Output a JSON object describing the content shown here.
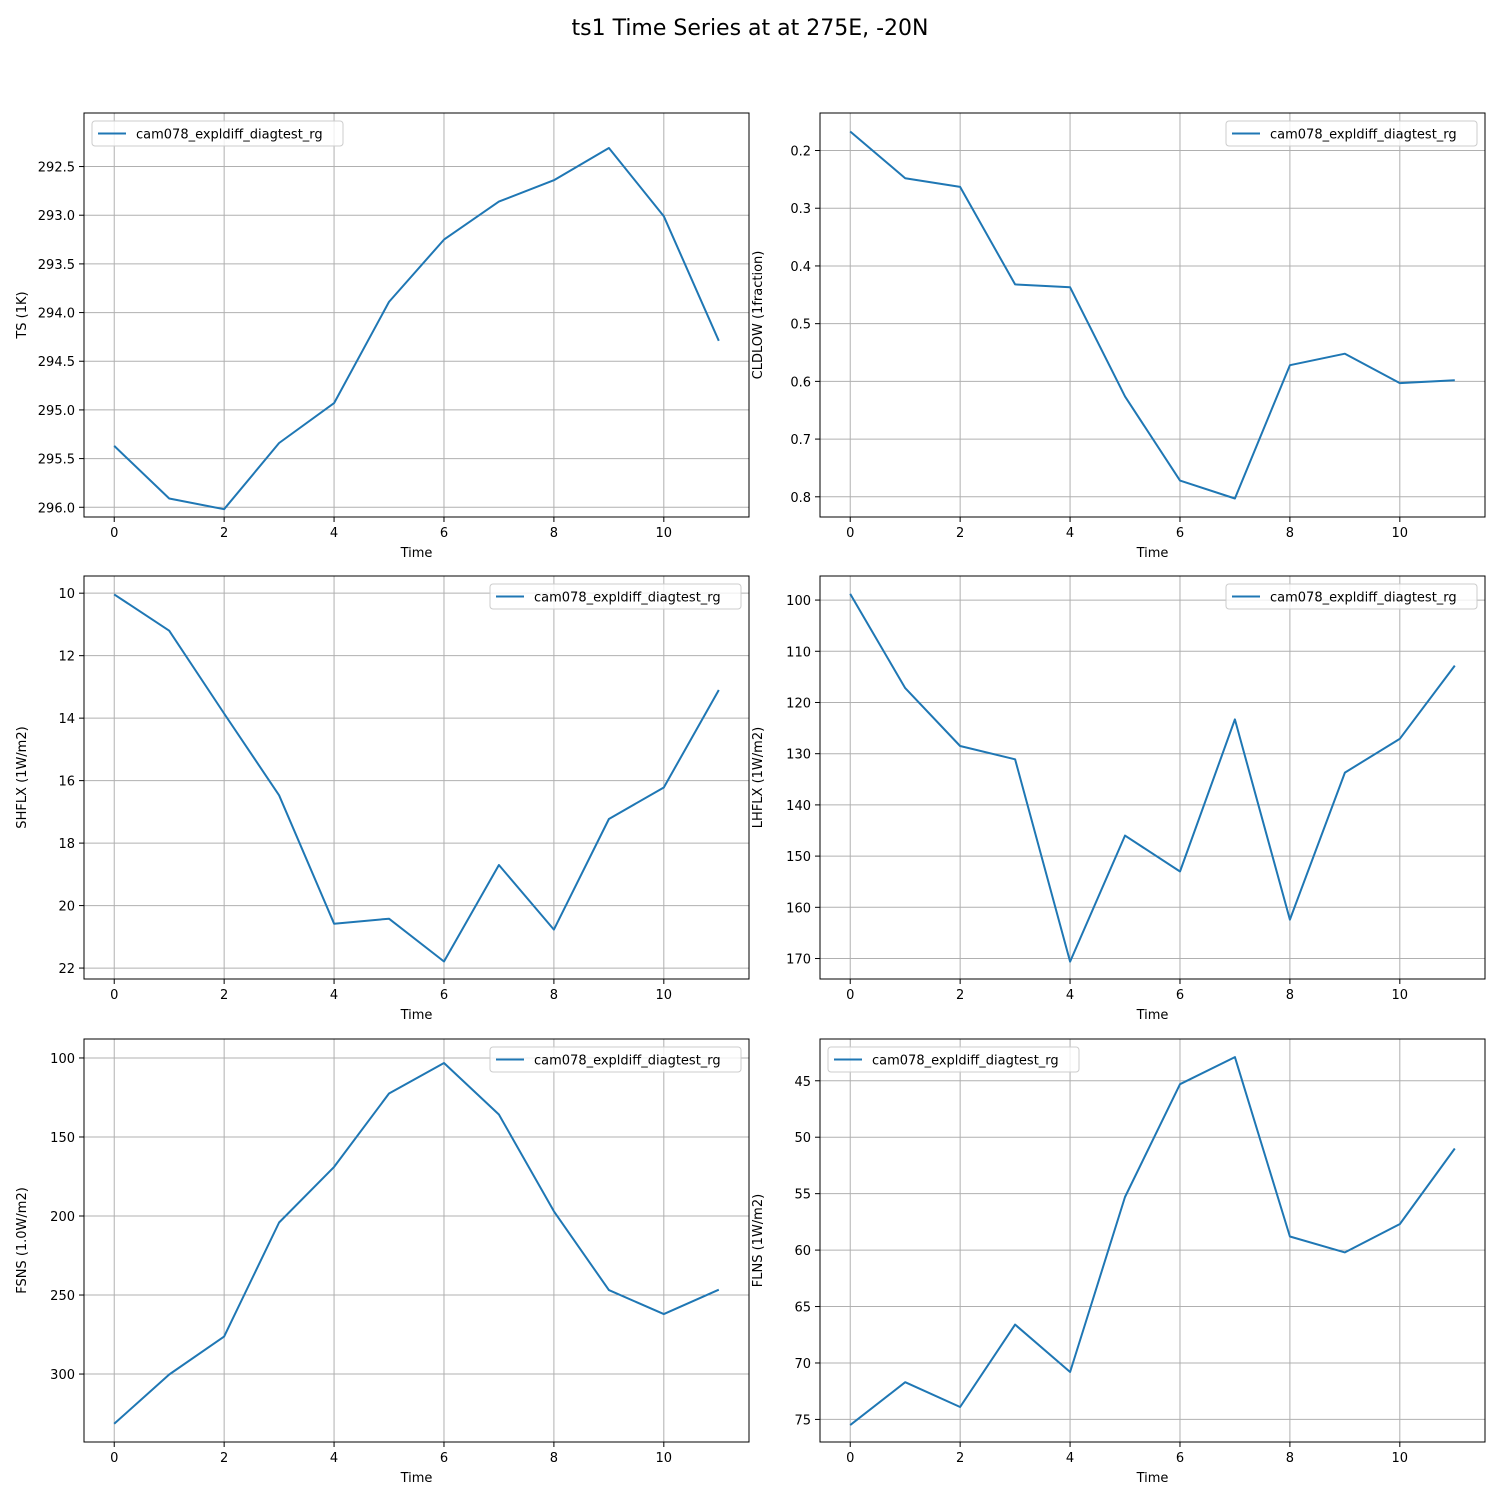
{
  "figure": {
    "title": "ts1 Time Series at at 275E, -20N"
  },
  "colors": {
    "line": "#1f77b4",
    "grid": "#b0b0b0",
    "axis": "#000000"
  },
  "chart_data": [
    {
      "type": "line",
      "xlabel": "Time",
      "ylabel": "TS (1K)",
      "y_inverted": true,
      "xlim": [
        -0.55,
        11.55
      ],
      "ylim": [
        296.1,
        291.95
      ],
      "x_ticks": [
        0,
        2,
        4,
        6,
        8,
        10
      ],
      "y_ticks": [
        292.5,
        293.0,
        293.5,
        294.0,
        294.5,
        295.0,
        295.5,
        296.0
      ],
      "y_tick_labels": [
        "292.5",
        "293.0",
        "293.5",
        "294.0",
        "294.5",
        "295.0",
        "295.5",
        "296.0"
      ],
      "grid": true,
      "legend_position": "upper left",
      "series": [
        {
          "name": "cam078_expldiff_diagtest_rg",
          "x": [
            0,
            1,
            2,
            3,
            4,
            5,
            6,
            7,
            8,
            9,
            10,
            11
          ],
          "y": [
            295.37,
            295.91,
            296.02,
            295.34,
            294.93,
            293.89,
            293.25,
            292.86,
            292.64,
            292.31,
            293.01,
            294.29
          ]
        }
      ]
    },
    {
      "type": "line",
      "xlabel": "Time",
      "ylabel": "CLDLOW (1fraction)",
      "y_inverted": true,
      "xlim": [
        -0.55,
        11.55
      ],
      "ylim": [
        0.835,
        0.135
      ],
      "x_ticks": [
        0,
        2,
        4,
        6,
        8,
        10
      ],
      "y_ticks": [
        0.2,
        0.3,
        0.4,
        0.5,
        0.6,
        0.7,
        0.8
      ],
      "y_tick_labels": [
        "0.2",
        "0.3",
        "0.4",
        "0.5",
        "0.6",
        "0.7",
        "0.8"
      ],
      "grid": true,
      "legend_position": "upper right",
      "series": [
        {
          "name": "cam078_expldiff_diagtest_rg",
          "x": [
            0,
            1,
            2,
            3,
            4,
            5,
            6,
            7,
            8,
            9,
            10,
            11
          ],
          "y": [
            0.167,
            0.248,
            0.263,
            0.432,
            0.437,
            0.626,
            0.772,
            0.803,
            0.572,
            0.552,
            0.603,
            0.598
          ]
        }
      ]
    },
    {
      "type": "line",
      "xlabel": "Time",
      "ylabel": "SHFLX (1W/m2)",
      "y_inverted": true,
      "xlim": [
        -0.55,
        11.55
      ],
      "ylim": [
        22.35,
        9.45
      ],
      "x_ticks": [
        0,
        2,
        4,
        6,
        8,
        10
      ],
      "y_ticks": [
        10,
        12,
        14,
        16,
        18,
        20,
        22
      ],
      "y_tick_labels": [
        "10",
        "12",
        "14",
        "16",
        "18",
        "20",
        "22"
      ],
      "grid": true,
      "legend_position": "upper right",
      "series": [
        {
          "name": "cam078_expldiff_diagtest_rg",
          "x": [
            0,
            1,
            2,
            3,
            4,
            5,
            6,
            7,
            8,
            9,
            10,
            11
          ],
          "y": [
            10.04,
            11.2,
            13.85,
            16.47,
            20.58,
            20.42,
            21.79,
            18.7,
            20.77,
            17.23,
            16.22,
            13.1
          ]
        }
      ]
    },
    {
      "type": "line",
      "xlabel": "Time",
      "ylabel": "LHFLX (1W/m2)",
      "y_inverted": true,
      "xlim": [
        -0.55,
        11.55
      ],
      "ylim": [
        174.0,
        95.3
      ],
      "x_ticks": [
        0,
        2,
        4,
        6,
        8,
        10
      ],
      "y_ticks": [
        100,
        110,
        120,
        130,
        140,
        150,
        160,
        170
      ],
      "y_tick_labels": [
        "100",
        "110",
        "120",
        "130",
        "140",
        "150",
        "160",
        "170"
      ],
      "grid": true,
      "legend_position": "upper right",
      "series": [
        {
          "name": "cam078_expldiff_diagtest_rg",
          "x": [
            0,
            1,
            2,
            3,
            4,
            5,
            6,
            7,
            8,
            9,
            10,
            11
          ],
          "y": [
            98.8,
            117.2,
            128.5,
            131.1,
            170.6,
            146.0,
            153.0,
            123.3,
            162.4,
            133.7,
            127.1,
            112.8
          ]
        }
      ]
    },
    {
      "type": "line",
      "xlabel": "Time",
      "ylabel": "FSNS (1.0W/m2)",
      "y_inverted": true,
      "xlim": [
        -0.55,
        11.55
      ],
      "ylim": [
        343.0,
        88.0
      ],
      "x_ticks": [
        0,
        2,
        4,
        6,
        8,
        10
      ],
      "y_ticks": [
        100,
        150,
        200,
        250,
        300
      ],
      "y_tick_labels": [
        "100",
        "150",
        "200",
        "250",
        "300"
      ],
      "grid": true,
      "legend_position": "upper right",
      "series": [
        {
          "name": "cam078_expldiff_diagtest_rg",
          "x": [
            0,
            1,
            2,
            3,
            4,
            5,
            6,
            7,
            8,
            9,
            10,
            11
          ],
          "y": [
            331.5,
            300.3,
            276.3,
            204.1,
            168.9,
            122.5,
            103.2,
            135.8,
            197.0,
            246.9,
            262.1,
            246.6
          ]
        }
      ]
    },
    {
      "type": "line",
      "xlabel": "Time",
      "ylabel": "FLNS (1W/m2)",
      "y_inverted": true,
      "xlim": [
        -0.55,
        11.55
      ],
      "ylim": [
        77.0,
        41.3
      ],
      "x_ticks": [
        0,
        2,
        4,
        6,
        8,
        10
      ],
      "y_ticks": [
        45,
        50,
        55,
        60,
        65,
        70,
        75
      ],
      "y_tick_labels": [
        "45",
        "50",
        "55",
        "60",
        "65",
        "70",
        "75"
      ],
      "grid": true,
      "legend_position": "upper left",
      "series": [
        {
          "name": "cam078_expldiff_diagtest_rg",
          "x": [
            0,
            1,
            2,
            3,
            4,
            5,
            6,
            7,
            8,
            9,
            10,
            11
          ],
          "y": [
            75.5,
            71.7,
            73.9,
            66.6,
            70.8,
            55.3,
            45.3,
            42.9,
            58.8,
            60.2,
            57.7,
            51.0
          ]
        }
      ]
    }
  ]
}
